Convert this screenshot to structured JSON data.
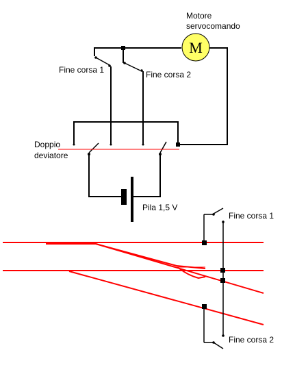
{
  "labels": {
    "motor_line1": "Motore",
    "motor_line2": "servocomando",
    "motor_symbol": "M",
    "limit_switch_1_top": "Fine corsa 1",
    "limit_switch_2_top": "Fine corsa 2",
    "double_switch_line1": "Doppio",
    "double_switch_line2": "deviatore",
    "battery": "Pila 1,5 V",
    "limit_switch_1_bottom": "Fine corsa 1",
    "limit_switch_2_bottom": "Fine corsa 2"
  },
  "colors": {
    "wire": "#000000",
    "track": "#ff0000",
    "motor_fill": "#ffff66",
    "background": "#ffffff"
  }
}
